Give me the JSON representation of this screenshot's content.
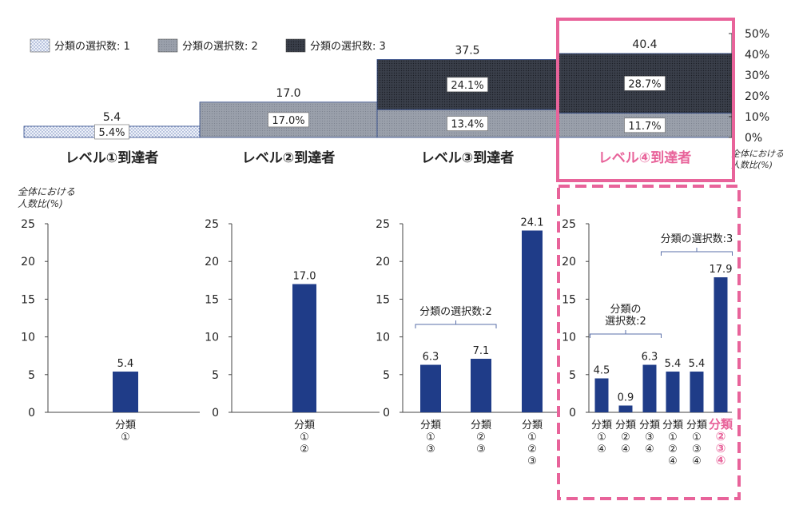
{
  "legend": [
    {
      "label": "分類の選択数: 1",
      "pattern": "dots"
    },
    {
      "label": "分類の選択数: 2",
      "pattern": "gray"
    },
    {
      "label": "分類の選択数: 3",
      "pattern": "dark"
    }
  ],
  "highlight_color": "#e8639a",
  "bar_color": "#1f3c88",
  "chart_data": [
    {
      "type": "bar",
      "stacked": true,
      "categories": [
        "レベル①到達者",
        "レベル②到達者",
        "レベル③到達者",
        "レベル④到達者"
      ],
      "highlighted_category": "レベル④到達者",
      "totals": [
        "5.4",
        "17.0",
        "37.5",
        "40.4"
      ],
      "series": [
        {
          "name": "分類の選択数: 1",
          "values": [
            5.4,
            0,
            0,
            0
          ],
          "labels": [
            "5.4%",
            "",
            "",
            ""
          ]
        },
        {
          "name": "分類の選択数: 2",
          "values": [
            0,
            17.0,
            13.4,
            11.7
          ],
          "labels": [
            "",
            "17.0%",
            "13.4%",
            "11.7%"
          ]
        },
        {
          "name": "分類の選択数: 3",
          "values": [
            0,
            0,
            24.1,
            28.7
          ],
          "labels": [
            "",
            "",
            "24.1%",
            "28.7%"
          ]
        }
      ],
      "yticks": [
        "0%",
        "10%",
        "20%",
        "30%",
        "40%",
        "50%"
      ],
      "ylim": [
        0,
        50
      ],
      "ylabel": "全体における\n人数比(%)"
    },
    {
      "type": "bar",
      "panel": "レベル①",
      "ylabel": "全体における\n人数比(%)",
      "categories": [
        "分類\n①"
      ],
      "values": [
        5.4
      ],
      "value_labels": [
        "5.4"
      ],
      "ylim": [
        0,
        25
      ],
      "yticks": [
        "0",
        "5",
        "10",
        "15",
        "20",
        "25"
      ]
    },
    {
      "type": "bar",
      "panel": "レベル②",
      "categories": [
        "分類\n①\n②"
      ],
      "values": [
        17.0
      ],
      "value_labels": [
        "17.0"
      ],
      "ylim": [
        0,
        25
      ],
      "yticks": [
        "0",
        "5",
        "10",
        "15",
        "20",
        "25"
      ]
    },
    {
      "type": "bar",
      "panel": "レベル③",
      "categories": [
        "分類\n①\n③",
        "分類\n②\n③",
        "分類\n①\n②\n③"
      ],
      "values": [
        6.3,
        7.1,
        24.1
      ],
      "value_labels": [
        "6.3",
        "7.1",
        "24.1"
      ],
      "ylim": [
        0,
        25
      ],
      "yticks": [
        "0",
        "5",
        "10",
        "15",
        "20",
        "25"
      ],
      "brackets": [
        {
          "label": "分類の選択数:2",
          "from": 0,
          "to": 1
        }
      ]
    },
    {
      "type": "bar",
      "panel": "レベル④",
      "categories": [
        "分類\n①\n④",
        "分類\n②\n④",
        "分類\n③\n④",
        "分類\n①\n②\n④",
        "分類\n①\n③\n④",
        "分類\n②\n③\n④"
      ],
      "values": [
        4.5,
        0.9,
        6.3,
        5.4,
        5.4,
        17.9
      ],
      "value_labels": [
        "4.5",
        "0.9",
        "6.3",
        "5.4",
        "5.4",
        "17.9"
      ],
      "highlighted_index": 5,
      "ylim": [
        0,
        25
      ],
      "yticks": [
        "0",
        "5",
        "10",
        "15",
        "20",
        "25"
      ],
      "brackets": [
        {
          "label": "分類の\n選択数:2",
          "from": 0,
          "to": 2
        },
        {
          "label": "分類の選択数:3",
          "from": 3,
          "to": 5
        }
      ]
    }
  ]
}
